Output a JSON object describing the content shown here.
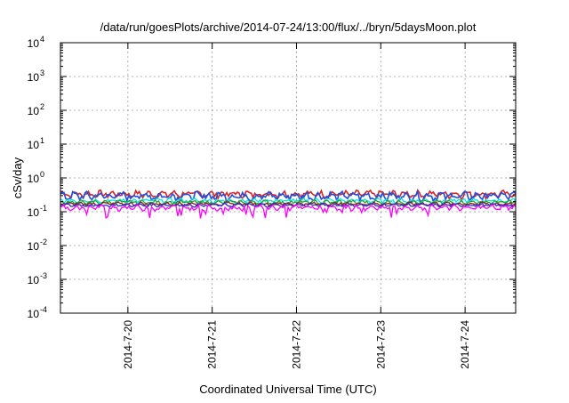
{
  "chart_data": {
    "type": "line",
    "title": "/data/run/goesPlots/archive/2014-07-24/13:00/flux/../bryn/5daysMoon.plot",
    "xlabel": "Coordinated Universal Time (UTC)",
    "ylabel": "cSv/day",
    "yscale": "log",
    "ylim": [
      0.0001,
      10000
    ],
    "xlim_days": [
      19.2,
      24.6
    ],
    "y_ticks": [
      {
        "base": "10",
        "exp": "-4",
        "value": 0.0001
      },
      {
        "base": "10",
        "exp": "-3",
        "value": 0.001
      },
      {
        "base": "10",
        "exp": "-2",
        "value": 0.01
      },
      {
        "base": "10",
        "exp": "-1",
        "value": 0.1
      },
      {
        "base": "10",
        "exp": "0",
        "value": 1
      },
      {
        "base": "10",
        "exp": "1",
        "value": 10
      },
      {
        "base": "10",
        "exp": "2",
        "value": 100
      },
      {
        "base": "10",
        "exp": "3",
        "value": 1000
      },
      {
        "base": "10",
        "exp": "4",
        "value": 10000
      }
    ],
    "x_ticks": [
      {
        "label": "2014-7-20",
        "day": 20
      },
      {
        "label": "2014-7-21",
        "day": 21
      },
      {
        "label": "2014-7-22",
        "day": 22
      },
      {
        "label": "2014-7-23",
        "day": 23
      },
      {
        "label": "2014-7-24",
        "day": 24
      }
    ],
    "grid": true,
    "series": [
      {
        "color": "#d62728",
        "base": 0.33,
        "amp": 0.12
      },
      {
        "color": "#1f4fe0",
        "base": 0.29,
        "amp": 0.13
      },
      {
        "color": "#00e5e5",
        "base": 0.21,
        "amp": 0.05
      },
      {
        "color": "#2ca02c",
        "base": 0.19,
        "amp": 0.04
      },
      {
        "color": "#8b1a1a",
        "base": 0.17,
        "amp": 0.03
      },
      {
        "color": "#2b2bd0",
        "base": 0.155,
        "amp": 0.025
      },
      {
        "color": "#ff00ff",
        "base": 0.13,
        "amp": 0.035
      }
    ]
  }
}
